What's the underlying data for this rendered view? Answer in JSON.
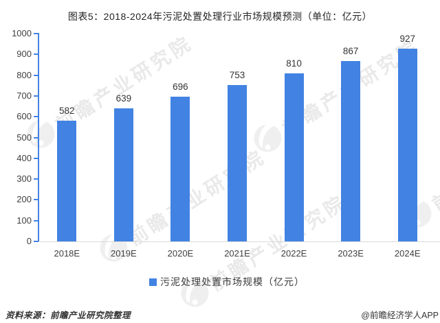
{
  "title": "图表5：2018-2024年污泥处置处理行业市场规模预测（单位：亿元）",
  "chart_data": {
    "type": "bar",
    "categories": [
      "2018E",
      "2019E",
      "2020E",
      "2021E",
      "2022E",
      "2023E",
      "2024E"
    ],
    "values": [
      582,
      639,
      696,
      753,
      810,
      867,
      927
    ],
    "series_name": "污泥处理处置市场规模（亿元）",
    "title": "图表5：2018-2024年污泥处置处理行业市场规模预测（单位：亿元）",
    "xlabel": "",
    "ylabel": "",
    "ylim": [
      0,
      1000
    ],
    "ytick_step": 100,
    "grid": false,
    "legend_position": "bottom",
    "bar_color": "#4282E2",
    "value_labels_shown": true
  },
  "legend": {
    "label": "污泥处理处置市场规模（亿元）",
    "swatch_color": "#4282E2"
  },
  "footer": {
    "source": "资料来源：前瞻产业研究院整理",
    "credit": "@前瞻经济学人APP"
  },
  "watermark": {
    "text": "前瞻产业研究院"
  },
  "colors": {
    "bar": "#4282E2",
    "axis": "#4282E2",
    "baseline": "#D9D9D9",
    "tick_text": "#3F3F3F",
    "title_text": "#242424"
  }
}
